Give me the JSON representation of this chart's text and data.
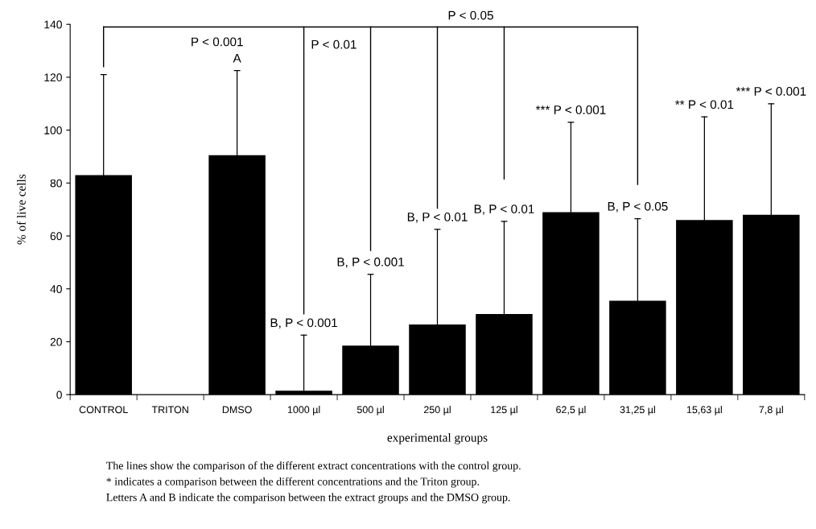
{
  "chart_data": {
    "type": "bar",
    "xlabel": "experimental groups",
    "ylabel": "% of live cells",
    "categories": [
      "CONTROL",
      "TRITON",
      "DMSO",
      "1000 µl",
      "500 µl",
      "250 µl",
      "125 µl",
      "62,5 µl",
      "31,25 µl",
      "15,63 µl",
      "7,8 µl"
    ],
    "values": [
      83,
      0,
      90.5,
      1.5,
      18.5,
      26.5,
      30.5,
      69,
      35.5,
      66,
      68
    ],
    "errors": [
      [
        83,
        121
      ],
      null,
      [
        90.5,
        122.5
      ],
      [
        1.5,
        22.5
      ],
      [
        18.5,
        45.5
      ],
      [
        26.5,
        62.5
      ],
      [
        30.5,
        65.5
      ],
      [
        69,
        103
      ],
      [
        35.5,
        66.5
      ],
      [
        66,
        105
      ],
      [
        68,
        110
      ]
    ],
    "color": "#000000",
    "ylim": [
      0,
      140
    ],
    "yticks": [
      0,
      20,
      40,
      60,
      80,
      100,
      120,
      140
    ],
    "annotations": [
      "P < 0.001",
      "P < 0.01",
      "P < 0.05",
      {
        "text": "A",
        "x": "DMSO",
        "y": 122.5
      },
      {
        "text": "B, P < 0.001",
        "x": "1000 µl",
        "y": 22.5
      },
      {
        "text": "B, P < 0.001",
        "x": "500 µl",
        "y": 45.5
      },
      {
        "text": "B, P < 0.01",
        "x": "250 µl",
        "y": 62.5
      },
      {
        "text": "B, P < 0.01",
        "x": "125 µl",
        "y": 65.5
      },
      {
        "text": "*** P < 0.001",
        "x": "62,5 µl",
        "y": 103
      },
      {
        "text": "B, P < 0.05",
        "x": "31,25 µl",
        "y": 66.5
      },
      {
        "text": "** P < 0.01",
        "x": "15,63 µl",
        "y": 105
      },
      {
        "text": "*** P < 0.001",
        "x": "7,8 µl",
        "y": 110
      },
      "The lines show the comparison of the different extract concentrations with the control group.",
      "* indicates a comparison between the different concentrations and the Triton group.",
      "Letters A and B indicate the comparison between the extract groups and the DMSO group."
    ]
  }
}
